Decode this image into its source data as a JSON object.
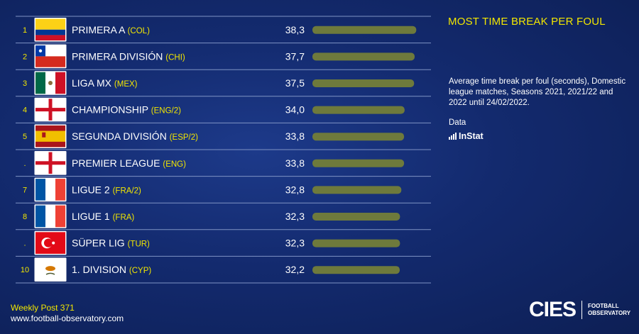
{
  "chart_data": {
    "type": "bar",
    "orientation": "horizontal",
    "title": "MOST TIME BREAK PER FOUL",
    "rows": [
      {
        "rank": "1",
        "league": "PRIMERA A",
        "code": "(COL)",
        "value": 38.3,
        "value_label": "38,3",
        "flag": "colombia-flag"
      },
      {
        "rank": "2",
        "league": "PRIMERA DIVISIÓN",
        "code": "(CHI)",
        "value": 37.7,
        "value_label": "37,7",
        "flag": "chile-flag"
      },
      {
        "rank": "3",
        "league": "LIGA MX",
        "code": "(MEX)",
        "value": 37.5,
        "value_label": "37,5",
        "flag": "mexico-flag"
      },
      {
        "rank": "4",
        "league": "CHAMPIONSHIP",
        "code": "(ENG/2)",
        "value": 34.0,
        "value_label": "34,0",
        "flag": "england-flag"
      },
      {
        "rank": "5",
        "league": "SEGUNDA DIVISIÓN",
        "code": "(ESP/2)",
        "value": 33.8,
        "value_label": "33,8",
        "flag": "spain-flag"
      },
      {
        "rank": ".",
        "league": "PREMIER LEAGUE",
        "code": "(ENG)",
        "value": 33.8,
        "value_label": "33,8",
        "flag": "england-flag"
      },
      {
        "rank": "7",
        "league": "LIGUE 2",
        "code": "(FRA/2)",
        "value": 32.8,
        "value_label": "32,8",
        "flag": "france-flag"
      },
      {
        "rank": "8",
        "league": "LIGUE 1",
        "code": "(FRA)",
        "value": 32.3,
        "value_label": "32,3",
        "flag": "france-flag"
      },
      {
        "rank": ".",
        "league": "SÜPER LIG",
        "code": "(TUR)",
        "value": 32.3,
        "value_label": "32,3",
        "flag": "turkey-flag"
      },
      {
        "rank": "10",
        "league": "1. DIVISION",
        "code": "(CYP)",
        "value": 32.2,
        "value_label": "32,2",
        "flag": "cyprus-flag"
      }
    ],
    "bar_color": "#6e7a3c",
    "rank_color": "#f2e600"
  },
  "sidebar": {
    "title": "MOST TIME BREAK PER FOUL",
    "description": "Average time break per foul (seconds), Domestic league matches, Seasons 2021, 2021/22 and 2022 until 24/02/2022.",
    "data_label": "Data",
    "source": "InStat"
  },
  "footer": {
    "post": "Weekly Post 371",
    "url": "www.football-observatory.com"
  },
  "logo": {
    "brand": "CIES",
    "sub_line1": "FOOTBALL",
    "sub_line2": "OBSERVATORY"
  },
  "colors": {
    "background": "#132a6e",
    "accent": "#f2e600"
  }
}
